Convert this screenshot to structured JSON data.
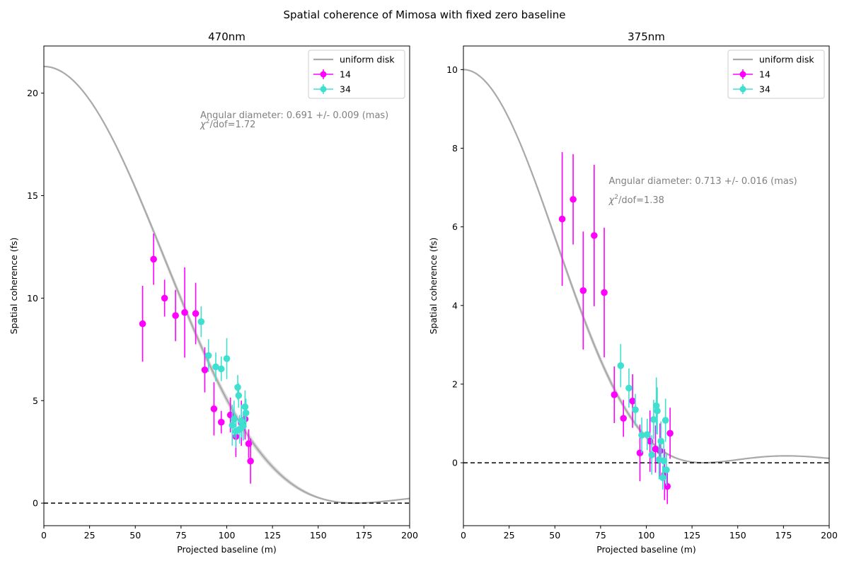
{
  "figure": {
    "suptitle": "Spatial coherence of Mimosa with fixed zero baseline"
  },
  "colors": {
    "model": "#a9a9a9",
    "band": "#d3d3d3",
    "s14": "#ff00ff",
    "s34": "#40e0d0",
    "annot": "#808080",
    "zero": "#000000"
  },
  "chart_data": [
    {
      "type": "scatter",
      "title": "470nm",
      "xlabel": "Projected baseline (m)",
      "ylabel": "Spatial coherence (fs)",
      "xlim": [
        0,
        200
      ],
      "ylim": [
        -1.1,
        22.3
      ],
      "xticks": [
        0,
        25,
        50,
        75,
        100,
        125,
        150,
        175,
        200
      ],
      "yticks": [
        0,
        5,
        10,
        15,
        20
      ],
      "grid": false,
      "legend": {
        "placement": "top-right",
        "entries": [
          "uniform disk",
          "14",
          "34"
        ]
      },
      "annotation": {
        "line1": "Angular diameter: 0.691 +/- 0.009 (mas)",
        "line2_prefix": "χ",
        "line2_sup": "2",
        "line2_rest": "/dof=1.72"
      },
      "model": {
        "name": "uniform disk",
        "amplitude": 21.3,
        "first_zero": 170.3
      },
      "zero_line": 0,
      "series": [
        {
          "name": "14",
          "color": "#ff00ff",
          "points": [
            {
              "x": 54,
              "y": 8.75,
              "err": 1.85
            },
            {
              "x": 60,
              "y": 11.9,
              "err": 1.25
            },
            {
              "x": 66,
              "y": 10.0,
              "err": 0.9
            },
            {
              "x": 72,
              "y": 9.15,
              "err": 1.25
            },
            {
              "x": 77,
              "y": 9.3,
              "err": 2.2
            },
            {
              "x": 83,
              "y": 9.25,
              "err": 1.5
            },
            {
              "x": 88,
              "y": 6.5,
              "err": 1.1
            },
            {
              "x": 93,
              "y": 4.6,
              "err": 1.3
            },
            {
              "x": 97,
              "y": 3.95,
              "err": 0.55
            },
            {
              "x": 102,
              "y": 4.3,
              "err": 0.85
            },
            {
              "x": 105,
              "y": 3.25,
              "err": 1.0
            },
            {
              "x": 108,
              "y": 3.9,
              "err": 1.1
            },
            {
              "x": 110,
              "y": 4.1,
              "err": 1.0
            },
            {
              "x": 112,
              "y": 2.9,
              "err": 0.7
            },
            {
              "x": 113,
              "y": 2.05,
              "err": 1.1
            }
          ]
        },
        {
          "name": "34",
          "color": "#40e0d0",
          "points": [
            {
              "x": 86,
              "y": 8.85,
              "err": 0.75
            },
            {
              "x": 90,
              "y": 7.2,
              "err": 0.8
            },
            {
              "x": 94,
              "y": 6.65,
              "err": 0.7
            },
            {
              "x": 97,
              "y": 6.55,
              "err": 0.6
            },
            {
              "x": 100,
              "y": 7.05,
              "err": 1.0
            },
            {
              "x": 103,
              "y": 3.8,
              "err": 1.0
            },
            {
              "x": 104,
              "y": 4.1,
              "err": 0.9
            },
            {
              "x": 105,
              "y": 3.5,
              "err": 0.8
            },
            {
              "x": 106,
              "y": 5.65,
              "err": 0.6
            },
            {
              "x": 106.5,
              "y": 5.25,
              "err": 0.6
            },
            {
              "x": 107,
              "y": 3.6,
              "err": 0.7
            },
            {
              "x": 108,
              "y": 4.0,
              "err": 0.8
            },
            {
              "x": 109,
              "y": 3.75,
              "err": 0.7
            },
            {
              "x": 110,
              "y": 4.7,
              "err": 0.8
            },
            {
              "x": 110.5,
              "y": 4.4,
              "err": 0.7
            }
          ]
        }
      ]
    },
    {
      "type": "scatter",
      "title": "375nm",
      "xlabel": "Projected baseline (m)",
      "ylabel": "Spatial coherence (fs)",
      "xlim": [
        0,
        200
      ],
      "ylim": [
        -1.6,
        10.6
      ],
      "xticks": [
        0,
        25,
        50,
        75,
        100,
        125,
        150,
        175,
        200
      ],
      "yticks": [
        0,
        2,
        4,
        6,
        8,
        10
      ],
      "grid": false,
      "legend": {
        "placement": "top-right",
        "entries": [
          "uniform disk",
          "14",
          "34"
        ]
      },
      "annotation": {
        "line1": "Angular diameter: 0.713 +/- 0.016 (mas)",
        "line2_prefix": "χ",
        "line2_sup": "2",
        "line2_rest": "/dof=1.38"
      },
      "model": {
        "name": "uniform disk",
        "amplitude": 10.0,
        "first_zero": 131.6
      },
      "zero_line": 0,
      "series": [
        {
          "name": "14",
          "color": "#ff00ff",
          "points": [
            {
              "x": 54,
              "y": 6.2,
              "err": 1.7
            },
            {
              "x": 60,
              "y": 6.7,
              "err": 1.15
            },
            {
              "x": 65.5,
              "y": 4.38,
              "err": 1.5
            },
            {
              "x": 71.5,
              "y": 5.78,
              "err": 1.8
            },
            {
              "x": 77,
              "y": 4.33,
              "err": 1.65
            },
            {
              "x": 82.5,
              "y": 1.73,
              "err": 0.72
            },
            {
              "x": 87.5,
              "y": 1.13,
              "err": 0.47
            },
            {
              "x": 92.5,
              "y": 1.57,
              "err": 0.68
            },
            {
              "x": 96.5,
              "y": 0.25,
              "err": 0.72
            },
            {
              "x": 102,
              "y": 0.55,
              "err": 0.78
            },
            {
              "x": 105,
              "y": 0.35,
              "err": 0.6
            },
            {
              "x": 107.5,
              "y": 0.3,
              "err": 0.7
            },
            {
              "x": 110,
              "y": -0.3,
              "err": 0.65
            },
            {
              "x": 111.5,
              "y": -0.6,
              "err": 0.45
            },
            {
              "x": 113,
              "y": 0.75,
              "err": 0.65
            }
          ]
        },
        {
          "name": "34",
          "color": "#40e0d0",
          "points": [
            {
              "x": 86,
              "y": 2.47,
              "err": 0.55
            },
            {
              "x": 90.5,
              "y": 1.9,
              "err": 0.5
            },
            {
              "x": 94,
              "y": 1.35,
              "err": 0.4
            },
            {
              "x": 97.5,
              "y": 0.7,
              "err": 0.45
            },
            {
              "x": 100.5,
              "y": 0.72,
              "err": 0.4
            },
            {
              "x": 103,
              "y": 0.2,
              "err": 0.5
            },
            {
              "x": 104,
              "y": 1.1,
              "err": 0.5
            },
            {
              "x": 105.5,
              "y": 1.45,
              "err": 0.72
            },
            {
              "x": 106,
              "y": 1.32,
              "err": 0.6
            },
            {
              "x": 107,
              "y": 0.08,
              "err": 0.5
            },
            {
              "x": 108,
              "y": 0.55,
              "err": 0.5
            },
            {
              "x": 109,
              "y": -0.38,
              "err": 0.3
            },
            {
              "x": 109.5,
              "y": 0.05,
              "err": 0.5
            },
            {
              "x": 110.5,
              "y": 1.08,
              "err": 0.55
            },
            {
              "x": 111,
              "y": -0.18,
              "err": 0.4
            }
          ]
        }
      ]
    }
  ]
}
